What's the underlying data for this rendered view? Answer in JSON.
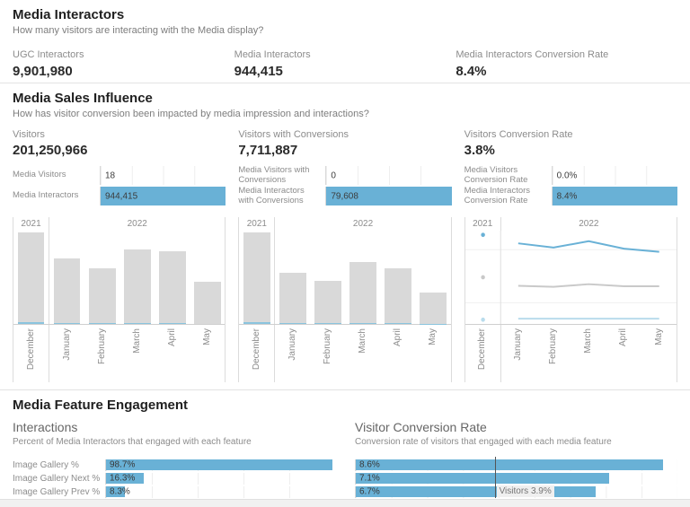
{
  "colors": {
    "accent_blue": "#69b1d6",
    "accent_blue_light": "#b9dcec",
    "bar_gray": "#d9d9d9",
    "line_gray": "#c9c9c9",
    "strip_blue": "#8ac4de",
    "ref_line": "#545454"
  },
  "section_media_interactors": {
    "title": "Media Interactors",
    "subtitle": "How many visitors are interacting with the Media display?",
    "kpis": [
      {
        "label": "UGC Interactors",
        "value": "9,901,980"
      },
      {
        "label": "Media Interactors",
        "value": "944,415"
      },
      {
        "label": "Media Interactors Conversion Rate",
        "value": "8.4%"
      }
    ]
  },
  "section_media_sales_influence": {
    "title": "Media Sales Influence",
    "subtitle": "How has visitor conversion been impacted by media impression and interactions?",
    "columns": [
      {
        "kpi_label": "Visitors",
        "kpi_value": "201,250,966"
      },
      {
        "kpi_label": "Visitors with Conversions",
        "kpi_value": "7,711,887"
      },
      {
        "kpi_label": "Visitors Conversion Rate",
        "kpi_value": "3.8%"
      }
    ]
  },
  "section_media_feature_engagement": {
    "title": "Media Feature Engagement",
    "left_chart": {
      "title": "Interactions",
      "subtitle": "Percent of Media Interactors that engaged with each feature"
    },
    "right_chart": {
      "title": "Visitor Conversion Rate",
      "subtitle": "Conversion rate of visitors that engaged with each media feature"
    }
  },
  "chart_data": [
    {
      "id": "media_visitors_vs_interactors",
      "type": "bar",
      "orientation": "horizontal",
      "categories": [
        "Media Visitors",
        "Media Interactors"
      ],
      "values": [
        18,
        944415
      ],
      "value_labels": [
        "18",
        "944,415"
      ],
      "xlim": [
        0,
        944415
      ],
      "grid_divisions": 4
    },
    {
      "id": "media_conversions",
      "type": "bar",
      "orientation": "horizontal",
      "categories": [
        "Media Visitors with Conversions",
        "Media Interactors with Conversions"
      ],
      "values": [
        0,
        79608
      ],
      "value_labels": [
        "0",
        "79,608"
      ],
      "xlim": [
        0,
        79608
      ],
      "grid_divisions": 4
    },
    {
      "id": "media_conversion_rates",
      "type": "bar",
      "orientation": "horizontal",
      "categories": [
        "Media Visitors Conversion Rate",
        "Media Interactors Conversion Rate"
      ],
      "values": [
        0.0,
        8.4
      ],
      "value_labels": [
        "0.0%",
        "8.4%"
      ],
      "xlim": [
        0,
        8.4
      ],
      "grid_divisions": 4
    },
    {
      "id": "visitors_by_month",
      "type": "bar",
      "categories": [
        "December",
        "January",
        "February",
        "March",
        "April",
        "May"
      ],
      "year_groups": [
        {
          "label": "2021",
          "span": 1
        },
        {
          "label": "2022",
          "span": 5
        }
      ],
      "values_relative_pct": [
        98,
        70,
        60,
        80,
        78,
        45
      ],
      "accent_strip_pct": [
        2,
        2,
        2,
        2,
        2,
        0
      ],
      "note": "y-axis unlabeled; bar heights estimated as percent of plot height"
    },
    {
      "id": "conversions_by_month",
      "type": "bar",
      "categories": [
        "December",
        "January",
        "February",
        "March",
        "April",
        "May"
      ],
      "year_groups": [
        {
          "label": "2021",
          "span": 1
        },
        {
          "label": "2022",
          "span": 5
        }
      ],
      "values_relative_pct": [
        98,
        55,
        46,
        67,
        60,
        34
      ],
      "accent_strip_pct": [
        2,
        2,
        2,
        2,
        2,
        2
      ],
      "note": "y-axis unlabeled; bar heights estimated as percent of plot height"
    },
    {
      "id": "conversion_rate_by_month",
      "type": "line",
      "categories": [
        "December",
        "January",
        "February",
        "March",
        "April",
        "May"
      ],
      "year_groups": [
        {
          "label": "2021",
          "span": 1
        },
        {
          "label": "2022",
          "span": 5
        }
      ],
      "ylim_est": [
        0,
        8.8
      ],
      "series": [
        {
          "name": "media-interactors-conversion-rate",
          "color": "#69b1d6",
          "values_est_pct": [
            8.4,
            7.6,
            7.2,
            7.8,
            7.1,
            6.8
          ]
        },
        {
          "name": "visitors-conversion-rate",
          "color": "#c9c9c9",
          "values_est_pct": [
            4.4,
            3.6,
            3.5,
            3.75,
            3.55,
            3.55
          ]
        },
        {
          "name": "media-visitors-conversion-rate",
          "color": "#b9dcec",
          "values_est_pct": [
            0.4,
            0.5,
            0.5,
            0.5,
            0.5,
            0.5
          ]
        }
      ],
      "note": "y-axis unlabeled; values estimated from line positions; December drawn as dots"
    },
    {
      "id": "feature_interactions",
      "type": "bar",
      "orientation": "horizontal",
      "categories": [
        "Image Gallery %",
        "Image Gallery Next %",
        "Image Gallery Prev %"
      ],
      "values": [
        98.7,
        16.3,
        8.3
      ],
      "value_labels": [
        "98.7%",
        "16.3%",
        "8.3%"
      ],
      "xlim": [
        0,
        100
      ],
      "grid_divisions": 5
    },
    {
      "id": "feature_visitor_conversion_rate",
      "type": "bar",
      "orientation": "horizontal",
      "values": [
        8.6,
        7.1,
        6.7
      ],
      "value_labels": [
        "8.6%",
        "7.1%",
        "6.7%"
      ],
      "xlim": [
        0,
        9
      ],
      "grid_divisions": 9,
      "reference_line": {
        "value": 3.9,
        "label": "Visitors 3.9%"
      }
    }
  ]
}
